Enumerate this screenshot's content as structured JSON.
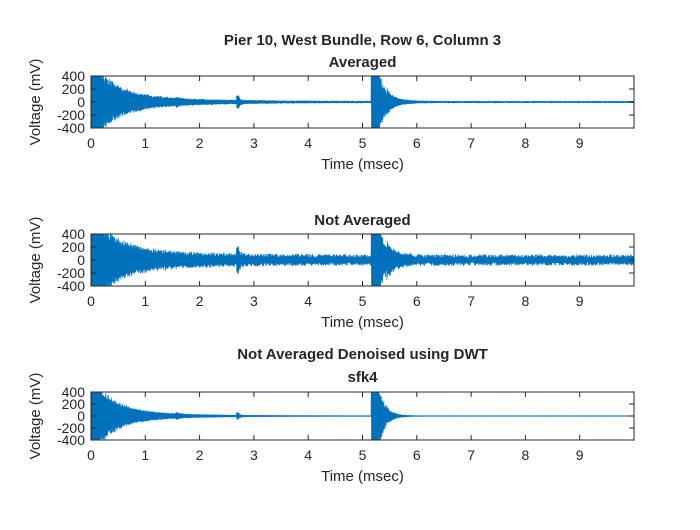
{
  "figure": {
    "signal_color": "#0072BD",
    "axis_color": "#262626"
  },
  "chart_data": [
    {
      "type": "line",
      "title": "Pier 10, West Bundle, Row 6, Column 3",
      "subtitle": "Averaged",
      "xlabel": "Time (msec)",
      "ylabel": "Voltage (mV)",
      "xlim": [
        0,
        10
      ],
      "ylim": [
        -400,
        400
      ],
      "xticks": [
        0,
        1,
        2,
        3,
        4,
        5,
        6,
        7,
        8,
        9
      ],
      "yticks": [
        -400,
        -200,
        0,
        200,
        400
      ],
      "grid": false,
      "signal": {
        "noise_floor_mV": 8,
        "bursts": [
          {
            "t_msec": 0.0,
            "peak_mV": 600,
            "decay_msec": 0.35,
            "width_msec": 0.0
          },
          {
            "t_msec": 0.02,
            "peak_mV": 180,
            "decay_msec": 1.2,
            "width_msec": 0.0
          },
          {
            "t_msec": 1.58,
            "peak_mV": 22,
            "decay_msec": 0.04,
            "width_msec": 0.02
          },
          {
            "t_msec": 2.7,
            "peak_mV": 70,
            "decay_msec": 0.03,
            "width_msec": 0.02
          },
          {
            "t_msec": 5.2,
            "peak_mV": 900,
            "decay_msec": 0.12,
            "width_msec": 0.04
          },
          {
            "t_msec": 5.45,
            "peak_mV": 60,
            "decay_msec": 0.25,
            "width_msec": 0.0
          }
        ]
      }
    },
    {
      "type": "line",
      "title": "Not Averaged",
      "subtitle": "",
      "xlabel": "Time (msec)",
      "ylabel": "Voltage (mV)",
      "xlim": [
        0,
        10
      ],
      "ylim": [
        -400,
        400
      ],
      "xticks": [
        0,
        1,
        2,
        3,
        4,
        5,
        6,
        7,
        8,
        9
      ],
      "yticks": [
        -400,
        -200,
        0,
        200,
        400
      ],
      "grid": false,
      "signal": {
        "noise_floor_mV": 55,
        "bursts": [
          {
            "t_msec": 0.0,
            "peak_mV": 650,
            "decay_msec": 0.35,
            "width_msec": 0.0
          },
          {
            "t_msec": 0.02,
            "peak_mV": 200,
            "decay_msec": 1.2,
            "width_msec": 0.0
          },
          {
            "t_msec": 2.7,
            "peak_mV": 110,
            "decay_msec": 0.03,
            "width_msec": 0.02
          },
          {
            "t_msec": 5.2,
            "peak_mV": 900,
            "decay_msec": 0.12,
            "width_msec": 0.04
          },
          {
            "t_msec": 5.45,
            "peak_mV": 90,
            "decay_msec": 0.25,
            "width_msec": 0.0
          }
        ]
      }
    },
    {
      "type": "line",
      "title": "Not Averaged Denoised using DWT",
      "subtitle": "sfk4",
      "xlabel": "Time (msec)",
      "ylabel": "Voltage (mV)",
      "xlim": [
        0,
        10
      ],
      "ylim": [
        -400,
        400
      ],
      "xticks": [
        0,
        1,
        2,
        3,
        4,
        5,
        6,
        7,
        8,
        9
      ],
      "yticks": [
        -400,
        -200,
        0,
        200,
        400
      ],
      "grid": false,
      "signal": {
        "noise_floor_mV": 3,
        "bursts": [
          {
            "t_msec": 0.0,
            "peak_mV": 620,
            "decay_msec": 0.35,
            "width_msec": 0.0
          },
          {
            "t_msec": 0.02,
            "peak_mV": 150,
            "decay_msec": 1.0,
            "width_msec": 0.0
          },
          {
            "t_msec": 1.58,
            "peak_mV": 18,
            "decay_msec": 0.04,
            "width_msec": 0.02
          },
          {
            "t_msec": 2.7,
            "peak_mV": 40,
            "decay_msec": 0.03,
            "width_msec": 0.02
          },
          {
            "t_msec": 5.2,
            "peak_mV": 900,
            "decay_msec": 0.12,
            "width_msec": 0.04
          }
        ]
      }
    }
  ]
}
